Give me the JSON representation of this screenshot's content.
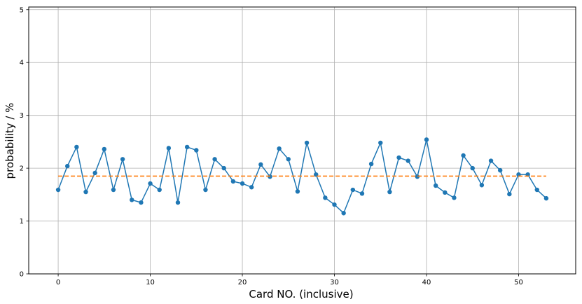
{
  "chart_data": {
    "type": "line",
    "title": "",
    "xlabel": "Card NO. (inclusive)",
    "ylabel": "probability / %",
    "xlim": [
      -3.2,
      56.2
    ],
    "ylim": [
      0,
      5.05
    ],
    "x_ticks": [
      0,
      10,
      20,
      30,
      40,
      50
    ],
    "y_ticks": [
      0,
      1,
      2,
      3,
      4,
      5
    ],
    "grid": true,
    "series": [
      {
        "kind": "line-marker",
        "color": "#1f77b4",
        "x": [
          0,
          1,
          2,
          3,
          4,
          5,
          6,
          7,
          8,
          9,
          10,
          11,
          12,
          13,
          14,
          15,
          16,
          17,
          18,
          19,
          20,
          21,
          22,
          23,
          24,
          25,
          26,
          27,
          28,
          29,
          30,
          31,
          32,
          33,
          34,
          35,
          36,
          37,
          38,
          39,
          40,
          41,
          42,
          43,
          44,
          45,
          46,
          47,
          48,
          49,
          50,
          51,
          52,
          53
        ],
        "values": [
          1.59,
          2.04,
          2.4,
          1.55,
          1.91,
          2.36,
          1.59,
          2.17,
          1.4,
          1.35,
          1.71,
          1.59,
          2.38,
          1.35,
          2.4,
          2.34,
          1.59,
          2.17,
          2.0,
          1.75,
          1.71,
          1.64,
          2.07,
          1.84,
          2.37,
          2.17,
          1.56,
          2.48,
          1.88,
          1.44,
          1.31,
          1.15,
          1.59,
          1.52,
          2.08,
          2.48,
          1.55,
          2.2,
          2.14,
          1.84,
          2.54,
          1.67,
          1.54,
          1.44,
          2.24,
          2.0,
          1.68,
          2.14,
          1.96,
          1.51,
          1.88,
          1.88,
          1.59,
          1.43
        ]
      },
      {
        "kind": "dashed",
        "color": "#ff7f0e",
        "x": [
          0,
          53
        ],
        "values": [
          1.85,
          1.85
        ]
      }
    ]
  }
}
